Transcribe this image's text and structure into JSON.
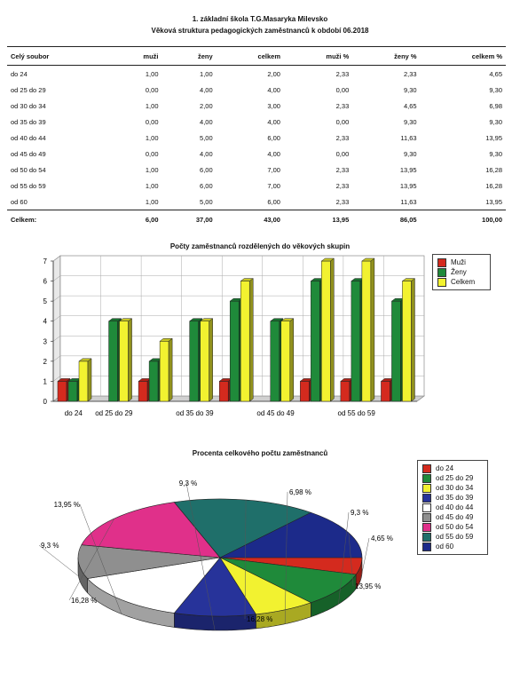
{
  "header": {
    "line1": "1. základní škola T.G.Masaryka Milevsko",
    "line2": "Věková struktura pedagogických zaměstnanců k období 06.2018"
  },
  "table": {
    "columns": [
      "Celý soubor",
      "muži",
      "ženy",
      "celkem",
      "muži %",
      "ženy %",
      "celkem %"
    ],
    "rows": [
      [
        "do 24",
        "1,00",
        "1,00",
        "2,00",
        "2,33",
        "2,33",
        "4,65"
      ],
      [
        "od 25 do 29",
        "0,00",
        "4,00",
        "4,00",
        "0,00",
        "9,30",
        "9,30"
      ],
      [
        "od 30 do 34",
        "1,00",
        "2,00",
        "3,00",
        "2,33",
        "4,65",
        "6,98"
      ],
      [
        "od 35 do 39",
        "0,00",
        "4,00",
        "4,00",
        "0,00",
        "9,30",
        "9,30"
      ],
      [
        "od 40 do 44",
        "1,00",
        "5,00",
        "6,00",
        "2,33",
        "11,63",
        "13,95"
      ],
      [
        "od 45 do 49",
        "0,00",
        "4,00",
        "4,00",
        "0,00",
        "9,30",
        "9,30"
      ],
      [
        "od 50 do 54",
        "1,00",
        "6,00",
        "7,00",
        "2,33",
        "13,95",
        "16,28"
      ],
      [
        "od 55 do 59",
        "1,00",
        "6,00",
        "7,00",
        "2,33",
        "13,95",
        "16,28"
      ],
      [
        "od 60",
        "1,00",
        "5,00",
        "6,00",
        "2,33",
        "11,63",
        "13,95"
      ]
    ],
    "total": [
      "Celkem:",
      "6,00",
      "37,00",
      "43,00",
      "13,95",
      "86,05",
      "100,00"
    ]
  },
  "chart_data": [
    {
      "type": "bar",
      "title": "Počty zaměstnanců rozdělených do věkových skupin",
      "categories": [
        "do 24",
        "od 25 do 29",
        "od 30 do 34",
        "od 35 do 39",
        "od 40 do 44",
        "od 45 do 49",
        "od 50 do 54",
        "od 55 do 59",
        "od 60"
      ],
      "x_tick_labels": [
        "do 24",
        "od 25 do 29",
        "od 35 do 39",
        "od 45 do 49",
        "od 55 do 59"
      ],
      "series": [
        {
          "name": "Muži",
          "color": "#d42a1e",
          "values": [
            1,
            0,
            1,
            0,
            1,
            0,
            1,
            1,
            1
          ]
        },
        {
          "name": "Ženy",
          "color": "#1f8a3a",
          "values": [
            1,
            4,
            2,
            4,
            5,
            4,
            6,
            6,
            5
          ]
        },
        {
          "name": "Celkem",
          "color": "#f2f230",
          "values": [
            2,
            4,
            3,
            4,
            6,
            4,
            7,
            7,
            6
          ]
        }
      ],
      "ylim": [
        0,
        7
      ],
      "yticks": [
        0,
        1,
        2,
        3,
        4,
        5,
        6,
        7
      ],
      "grid": true,
      "legend": "right"
    },
    {
      "type": "pie",
      "title": "Procenta celkového počtu zaměstnanců",
      "categories": [
        "do 24",
        "od 25 do 29",
        "od 30 do 34",
        "od 35 do 39",
        "od 40 do 44",
        "od 45 do 49",
        "od 50 do 54",
        "od 55 do 59",
        "od 60"
      ],
      "values": [
        4.65,
        9.3,
        6.98,
        9.3,
        13.95,
        9.3,
        16.28,
        16.28,
        13.95
      ],
      "labels": [
        "4,65 %",
        "9,3 %",
        "6,98 %",
        "9,3 %",
        "13,95 %",
        "9,3 %",
        "16,28 %",
        "16,28 %",
        "13,95 %"
      ],
      "colors": [
        "#d42a1e",
        "#1f8a3a",
        "#f2f230",
        "#27339a",
        "#ffffff",
        "#8f8f8f",
        "#e0308a",
        "#1f6f6a",
        "#1c2a8a"
      ],
      "legend": "right"
    }
  ]
}
